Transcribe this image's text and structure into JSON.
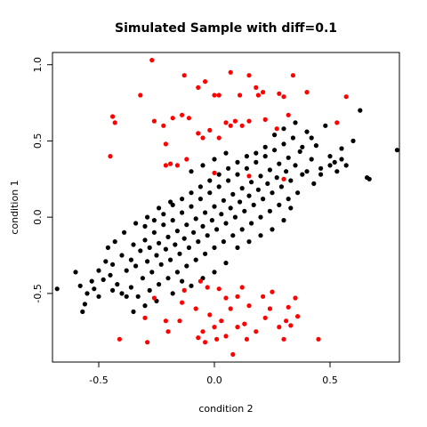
{
  "chart_data": {
    "type": "scatter",
    "title": "Simulated Sample with diff=0.1",
    "xlabel": "condition 2",
    "ylabel": "condition 1",
    "xlim": [
      -0.7,
      0.8
    ],
    "ylim": [
      -0.95,
      1.08
    ],
    "xticks": [
      -0.5,
      0.0,
      0.5
    ],
    "xtick_labels": [
      "-0.5",
      "0.0",
      "0.5"
    ],
    "yticks": [
      -0.5,
      0.0,
      0.5,
      1.0
    ],
    "ytick_labels": [
      "-0.5",
      "0.0",
      "0.5",
      "1.0"
    ],
    "grid": false,
    "series": [
      {
        "color": "#000000",
        "points": [
          [
            -0.68,
            -0.47
          ],
          [
            -0.6,
            -0.36
          ],
          [
            -0.58,
            -0.45
          ],
          [
            -0.57,
            -0.62
          ],
          [
            -0.56,
            -0.57
          ],
          [
            -0.53,
            -0.42
          ],
          [
            -0.5,
            -0.35
          ],
          [
            -0.48,
            -0.41
          ],
          [
            -0.47,
            -0.29
          ],
          [
            -0.45,
            -0.38
          ],
          [
            -0.44,
            -0.31
          ],
          [
            -0.42,
            -0.44
          ],
          [
            -0.4,
            -0.25
          ],
          [
            -0.38,
            -0.35
          ],
          [
            -0.36,
            -0.28
          ],
          [
            -0.35,
            -0.18
          ],
          [
            -0.34,
            -0.32
          ],
          [
            -0.32,
            -0.22
          ],
          [
            -0.31,
            -0.4
          ],
          [
            -0.3,
            -0.15
          ],
          [
            -0.29,
            -0.29
          ],
          [
            -0.28,
            -0.2
          ],
          [
            -0.27,
            -0.36
          ],
          [
            -0.26,
            -0.1
          ],
          [
            -0.25,
            -0.25
          ],
          [
            -0.24,
            -0.17
          ],
          [
            -0.23,
            -0.31
          ],
          [
            -0.22,
            -0.05
          ],
          [
            -0.21,
            -0.21
          ],
          [
            -0.2,
            -0.13
          ],
          [
            -0.19,
            -0.28
          ],
          [
            -0.18,
            -0.02
          ],
          [
            -0.17,
            -0.18
          ],
          [
            -0.16,
            -0.09
          ],
          [
            -0.15,
            -0.24
          ],
          [
            -0.14,
            0.03
          ],
          [
            -0.13,
            -0.14
          ],
          [
            -0.12,
            -0.05
          ],
          [
            -0.11,
            -0.2
          ],
          [
            -0.1,
            0.07
          ],
          [
            -0.09,
            -0.1
          ],
          [
            -0.08,
            -0.01
          ],
          [
            -0.07,
            -0.16
          ],
          [
            -0.06,
            0.12
          ],
          [
            -0.05,
            -0.06
          ],
          [
            -0.04,
            0.03
          ],
          [
            -0.03,
            -0.12
          ],
          [
            -0.02,
            0.16
          ],
          [
            -0.01,
            -0.02
          ],
          [
            0.0,
            0.07
          ],
          [
            0.01,
            -0.08
          ],
          [
            0.02,
            0.2
          ],
          [
            0.03,
            0.02
          ],
          [
            0.04,
            0.11
          ],
          [
            0.05,
            -0.04
          ],
          [
            0.06,
            0.24
          ],
          [
            0.07,
            0.06
          ],
          [
            0.08,
            0.15
          ],
          [
            0.09,
            0.0
          ],
          [
            0.1,
            0.28
          ],
          [
            0.11,
            0.1
          ],
          [
            0.12,
            0.19
          ],
          [
            0.13,
            0.04
          ],
          [
            0.14,
            0.32
          ],
          [
            0.15,
            0.14
          ],
          [
            0.16,
            0.23
          ],
          [
            0.17,
            0.08
          ],
          [
            0.18,
            0.36
          ],
          [
            0.19,
            0.18
          ],
          [
            0.2,
            0.27
          ],
          [
            0.21,
            0.12
          ],
          [
            0.22,
            0.4
          ],
          [
            0.23,
            0.22
          ],
          [
            0.24,
            0.31
          ],
          [
            0.25,
            0.16
          ],
          [
            0.26,
            0.44
          ],
          [
            0.27,
            0.26
          ],
          [
            0.28,
            0.35
          ],
          [
            0.29,
            0.2
          ],
          [
            0.3,
            0.48
          ],
          [
            0.31,
            0.3
          ],
          [
            0.32,
            0.39
          ],
          [
            0.33,
            0.24
          ],
          [
            0.34,
            0.52
          ],
          [
            0.35,
            0.34
          ],
          [
            0.37,
            0.43
          ],
          [
            0.38,
            0.28
          ],
          [
            0.4,
            0.56
          ],
          [
            0.42,
            0.38
          ],
          [
            0.44,
            0.47
          ],
          [
            0.46,
            0.32
          ],
          [
            0.48,
            0.6
          ],
          [
            0.5,
            0.4
          ],
          [
            0.52,
            0.36
          ],
          [
            0.55,
            0.45
          ],
          [
            0.6,
            0.5
          ],
          [
            0.63,
            0.7
          ],
          [
            0.66,
            0.26
          ],
          [
            0.67,
            0.25
          ],
          [
            0.79,
            0.44
          ],
          [
            -0.3,
            -0.06
          ],
          [
            -0.26,
            -0.02
          ],
          [
            -0.22,
            0.02
          ],
          [
            -0.18,
            0.08
          ],
          [
            -0.14,
            0.12
          ],
          [
            -0.1,
            0.16
          ],
          [
            -0.06,
            0.2
          ],
          [
            -0.02,
            0.24
          ],
          [
            0.02,
            0.28
          ],
          [
            0.06,
            0.32
          ],
          [
            0.1,
            0.36
          ],
          [
            0.14,
            0.4
          ],
          [
            0.18,
            0.42
          ],
          [
            0.22,
            0.46
          ],
          [
            -0.2,
            -0.4
          ],
          [
            -0.16,
            -0.36
          ],
          [
            -0.12,
            -0.32
          ],
          [
            -0.08,
            -0.28
          ],
          [
            -0.04,
            -0.24
          ],
          [
            0.0,
            -0.2
          ],
          [
            0.04,
            -0.16
          ],
          [
            0.08,
            -0.12
          ],
          [
            0.12,
            -0.08
          ],
          [
            0.16,
            -0.04
          ],
          [
            0.2,
            0.0
          ],
          [
            0.24,
            0.04
          ],
          [
            0.28,
            0.08
          ],
          [
            0.32,
            0.12
          ],
          [
            0.36,
            0.16
          ],
          [
            -0.4,
            -0.5
          ],
          [
            -0.36,
            -0.46
          ],
          [
            -0.33,
            -0.52
          ],
          [
            -0.28,
            -0.48
          ],
          [
            -0.24,
            -0.44
          ],
          [
            -0.18,
            -0.5
          ],
          [
            -0.14,
            -0.42
          ],
          [
            -0.46,
            -0.2
          ],
          [
            -0.43,
            -0.16
          ],
          [
            -0.39,
            -0.1
          ],
          [
            -0.34,
            -0.04
          ],
          [
            -0.29,
            0.0
          ],
          [
            -0.24,
            0.06
          ],
          [
            -0.19,
            0.1
          ],
          [
            -0.44,
            -0.48
          ],
          [
            -0.38,
            -0.52
          ],
          [
            -0.5,
            -0.52
          ],
          [
            -0.52,
            -0.47
          ],
          [
            -0.55,
            -0.5
          ],
          [
            0.4,
            0.3
          ],
          [
            0.43,
            0.22
          ],
          [
            0.46,
            0.28
          ],
          [
            0.5,
            0.34
          ],
          [
            0.53,
            0.3
          ],
          [
            0.38,
            0.46
          ],
          [
            0.42,
            0.52
          ],
          [
            0.3,
            0.58
          ],
          [
            0.26,
            0.54
          ],
          [
            0.35,
            0.62
          ],
          [
            0.55,
            0.38
          ],
          [
            0.57,
            0.34
          ],
          [
            -0.05,
            0.34
          ],
          [
            0.0,
            0.38
          ],
          [
            -0.1,
            0.3
          ],
          [
            0.05,
            0.42
          ],
          [
            0.1,
            -0.2
          ],
          [
            0.15,
            -0.16
          ],
          [
            0.2,
            -0.12
          ],
          [
            0.25,
            -0.08
          ],
          [
            0.05,
            -0.3
          ],
          [
            -0.05,
            -0.4
          ],
          [
            0.0,
            -0.36
          ],
          [
            -0.1,
            -0.45
          ],
          [
            0.3,
            -0.02
          ],
          [
            0.33,
            0.06
          ],
          [
            -0.35,
            -0.62
          ],
          [
            -0.3,
            -0.58
          ],
          [
            -0.25,
            -0.55
          ]
        ]
      },
      {
        "color": "#ff0000",
        "points": [
          [
            -0.27,
            1.03
          ],
          [
            -0.13,
            0.93
          ],
          [
            -0.07,
            0.85
          ],
          [
            -0.04,
            0.89
          ],
          [
            0.0,
            0.8
          ],
          [
            0.02,
            0.8
          ],
          [
            0.07,
            0.95
          ],
          [
            0.11,
            0.8
          ],
          [
            0.15,
            0.93
          ],
          [
            0.18,
            0.85
          ],
          [
            0.19,
            0.8
          ],
          [
            0.21,
            0.82
          ],
          [
            0.28,
            0.81
          ],
          [
            0.3,
            0.79
          ],
          [
            0.34,
            0.93
          ],
          [
            0.4,
            0.82
          ],
          [
            0.57,
            0.79
          ],
          [
            -0.32,
            0.8
          ],
          [
            -0.26,
            0.63
          ],
          [
            -0.22,
            0.6
          ],
          [
            -0.21,
            0.48
          ],
          [
            -0.18,
            0.65
          ],
          [
            -0.14,
            0.67
          ],
          [
            -0.11,
            0.65
          ],
          [
            -0.07,
            0.55
          ],
          [
            -0.05,
            0.52
          ],
          [
            -0.02,
            0.57
          ],
          [
            0.02,
            0.52
          ],
          [
            0.05,
            0.62
          ],
          [
            0.07,
            0.6
          ],
          [
            0.09,
            0.63
          ],
          [
            0.12,
            0.6
          ],
          [
            0.15,
            0.63
          ],
          [
            0.22,
            0.64
          ],
          [
            0.27,
            0.58
          ],
          [
            0.32,
            0.67
          ],
          [
            0.53,
            0.62
          ],
          [
            -0.44,
            0.66
          ],
          [
            -0.43,
            0.62
          ],
          [
            -0.45,
            0.4
          ],
          [
            -0.21,
            0.34
          ],
          [
            -0.19,
            0.35
          ],
          [
            -0.16,
            0.34
          ],
          [
            -0.12,
            0.38
          ],
          [
            0.0,
            0.29
          ],
          [
            0.15,
            0.27
          ],
          [
            0.3,
            0.25
          ],
          [
            -0.13,
            -0.48
          ],
          [
            -0.06,
            -0.42
          ],
          [
            -0.03,
            -0.46
          ],
          [
            0.02,
            -0.47
          ],
          [
            0.05,
            -0.53
          ],
          [
            0.1,
            -0.52
          ],
          [
            0.15,
            -0.58
          ],
          [
            0.21,
            -0.52
          ],
          [
            0.25,
            -0.49
          ],
          [
            0.32,
            -0.59
          ],
          [
            0.35,
            -0.53
          ],
          [
            -0.26,
            -0.53
          ],
          [
            -0.3,
            -0.66
          ],
          [
            -0.21,
            -0.68
          ],
          [
            -0.15,
            -0.68
          ],
          [
            -0.08,
            -0.6
          ],
          [
            -0.05,
            -0.75
          ],
          [
            0.0,
            -0.72
          ],
          [
            0.03,
            -0.68
          ],
          [
            0.07,
            -0.6
          ],
          [
            0.1,
            -0.72
          ],
          [
            0.13,
            -0.7
          ],
          [
            0.18,
            -0.75
          ],
          [
            0.24,
            -0.6
          ],
          [
            0.28,
            -0.72
          ],
          [
            0.31,
            -0.68
          ],
          [
            0.33,
            -0.71
          ],
          [
            0.36,
            -0.65
          ],
          [
            -0.41,
            -0.8
          ],
          [
            -0.29,
            -0.82
          ],
          [
            -0.2,
            -0.75
          ],
          [
            -0.07,
            -0.79
          ],
          [
            -0.04,
            -0.82
          ],
          [
            0.01,
            -0.8
          ],
          [
            0.05,
            -0.78
          ],
          [
            0.08,
            -0.9
          ],
          [
            0.14,
            -0.8
          ],
          [
            0.3,
            -0.8
          ],
          [
            0.45,
            -0.8
          ],
          [
            -0.02,
            -0.64
          ],
          [
            0.22,
            -0.66
          ],
          [
            -0.14,
            -0.56
          ],
          [
            0.12,
            -0.46
          ]
        ]
      }
    ]
  }
}
